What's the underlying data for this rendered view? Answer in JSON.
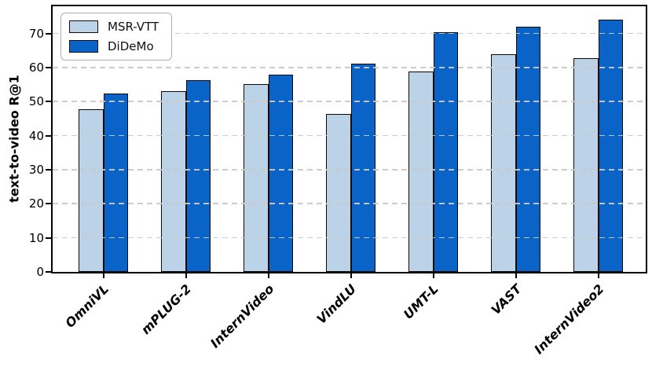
{
  "figure": {
    "background": "#ffffff",
    "spine_color": "#000000",
    "gridline_color": "#c9c9c9",
    "gridline_style": "dashed, horizontal, drawn above bars",
    "bar_edge_color": "#0a0a0a"
  },
  "legend": {
    "position": "upper-left",
    "border_color": "#b0b0b0"
  },
  "chart_data": {
    "type": "bar",
    "title": "",
    "xlabel": "",
    "ylabel": "text-to-video R@1",
    "categories": [
      "OmniVL",
      "mPLUG-2",
      "InternVideo",
      "VindLU",
      "UMT-L",
      "VAST",
      "InternVideo2"
    ],
    "series": [
      {
        "name": "MSR-VTT",
        "color": "#bcd2e6",
        "values": [
          47.8,
          53.1,
          55.2,
          46.5,
          58.8,
          63.9,
          62.8
        ]
      },
      {
        "name": "DiDeMo",
        "color": "#0a64c8",
        "values": [
          52.4,
          56.4,
          57.9,
          61.2,
          70.4,
          72.0,
          74.1
        ]
      }
    ],
    "yticks": [
      0,
      10,
      20,
      30,
      40,
      50,
      60,
      70
    ],
    "ylim": [
      0,
      78
    ],
    "grid": true,
    "legend_position": "upper-left",
    "x_tick_label_rotation_deg": 45,
    "x_tick_label_style": "bold italic"
  }
}
